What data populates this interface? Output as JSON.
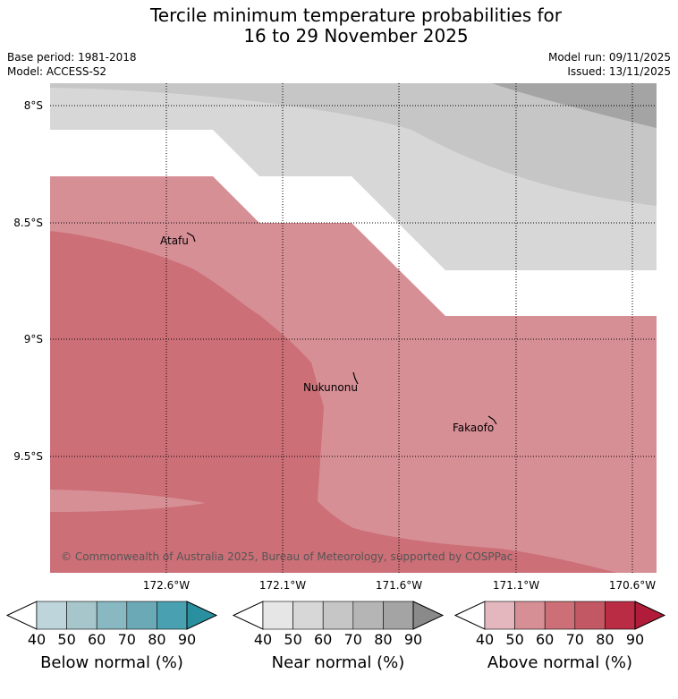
{
  "title": {
    "line1": "Tercile minimum temperature probabilities for",
    "line2": "16 to 29 November 2025"
  },
  "meta": {
    "base_period": "Base period: 1981-2018",
    "model": "Model: ACCESS-S2",
    "model_run": "Model run: 09/11/2025",
    "issued": "Issued: 13/11/2025"
  },
  "map": {
    "lat_labels": [
      "8°S",
      "8.5°S",
      "9°S",
      "9.5°S"
    ],
    "lon_labels": [
      "172.6°W",
      "172.1°W",
      "171.6°W",
      "171.1°W",
      "170.6°W"
    ],
    "places": [
      "Atafu",
      "Nukunonu",
      "Fakaofo"
    ],
    "credit": "© Commonwealth of Australia 2025, Bureau of Meteorology, supported by COSPPac"
  },
  "legends": [
    {
      "title": "Below normal (%)",
      "ticks": [
        "40",
        "50",
        "60",
        "70",
        "80",
        "90"
      ],
      "colors": [
        "#ffffff",
        "#bdd5db",
        "#a6c6cc",
        "#88b8c2",
        "#6ca9b6",
        "#48a0b0",
        "#2a8f9f"
      ]
    },
    {
      "title": "Near normal (%)",
      "ticks": [
        "40",
        "50",
        "60",
        "70",
        "80",
        "90"
      ],
      "colors": [
        "#ffffff",
        "#e6e6e6",
        "#d7d7d7",
        "#c6c6c6",
        "#b5b5b5",
        "#a4a4a4",
        "#8a8a8a"
      ]
    },
    {
      "title": "Above normal (%)",
      "ticks": [
        "40",
        "50",
        "60",
        "70",
        "80",
        "90"
      ],
      "colors": [
        "#ffffff",
        "#e3b7bd",
        "#d78f96",
        "#cc6f77",
        "#c25863",
        "#b92c44",
        "#b01c3a"
      ]
    }
  ]
}
